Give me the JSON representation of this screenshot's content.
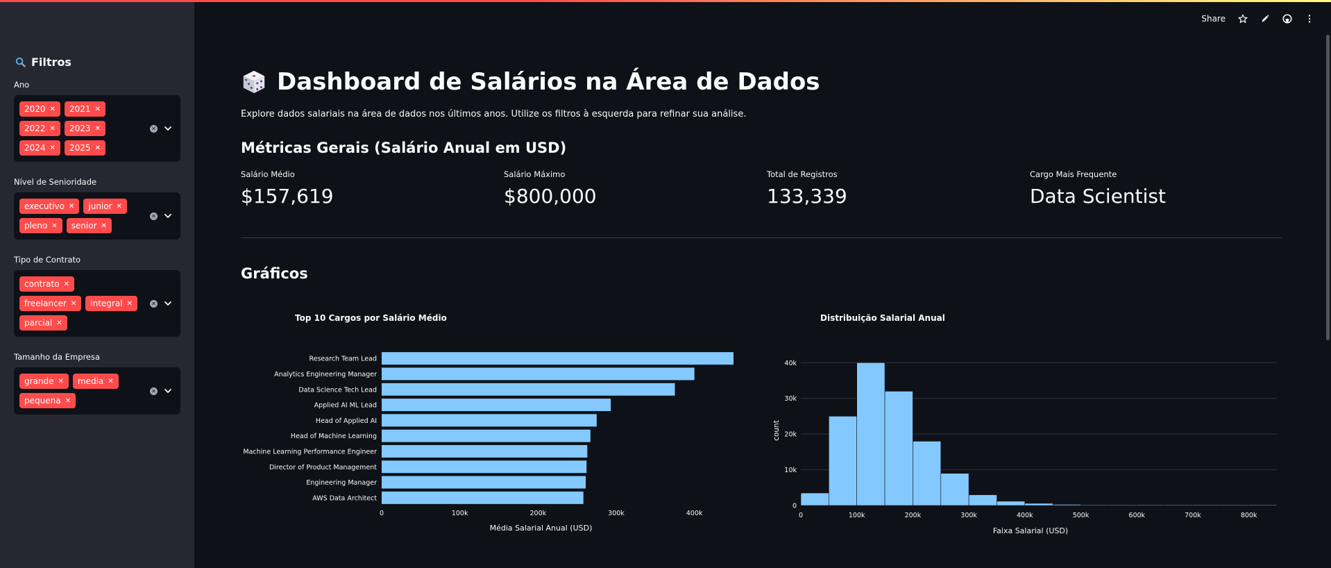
{
  "colors": {
    "accent": "#ff4b4b",
    "bar": "#83c9ff",
    "bg": "#0e1117",
    "sidebar": "#262730"
  },
  "sidebar": {
    "title": "Filtros",
    "title_icon": "search-icon",
    "filters": [
      {
        "label": "Ano",
        "chips": [
          "2020",
          "2021",
          "2022",
          "2023",
          "2024",
          "2025"
        ]
      },
      {
        "label": "Nível de Senioridade",
        "chips": [
          "executivo",
          "junior",
          "pleno",
          "senior"
        ]
      },
      {
        "label": "Tipo de Contrato",
        "chips": [
          "contrato",
          "freelancer",
          "integral",
          "parcial"
        ]
      },
      {
        "label": "Tamanho da Empresa",
        "chips": [
          "grande",
          "media",
          "pequena"
        ]
      }
    ]
  },
  "toolbar": {
    "share_label": "Share",
    "icons": [
      "star-icon",
      "pencil-icon",
      "github-icon",
      "more-vertical-icon"
    ]
  },
  "main": {
    "title": "Dashboard de Salários na Área de Dados",
    "subtitle": "Explore dados salariais na área de dados nos últimos anos. Utilize os filtros à esquerda para refinar sua análise.",
    "metrics_heading": "Métricas Gerais (Salário Anual em USD)",
    "metrics": [
      {
        "label": "Salário Médio",
        "value": "$157,619"
      },
      {
        "label": "Salário Máximo",
        "value": "$800,000"
      },
      {
        "label": "Total de Registros",
        "value": "133,339"
      },
      {
        "label": "Cargo Mais Frequente",
        "value": "Data Scientist"
      }
    ],
    "charts_heading": "Gráficos"
  },
  "chart_data": [
    {
      "type": "bar",
      "orientation": "horizontal",
      "title": "Top 10 Cargos por Salário Médio",
      "xlabel": "Média Salarial Anual (USD)",
      "ylabel": "",
      "xlim": [
        0,
        450000
      ],
      "xticks": [
        0,
        100000,
        200000,
        300000,
        400000
      ],
      "xtick_labels": [
        "0",
        "100k",
        "200k",
        "300k",
        "400k"
      ],
      "categories": [
        "Research Team Lead",
        "Analytics Engineering Manager",
        "Data Science Tech Lead",
        "Applied AI ML Lead",
        "Head of Applied AI",
        "Head of Machine Learning",
        "Machine Learning Performance Engineer",
        "Director of Product Management",
        "Engineering Manager",
        "AWS Data Architect"
      ],
      "values": [
        450000,
        400000,
        375000,
        293000,
        275000,
        267000,
        263000,
        262000,
        261000,
        258000
      ],
      "grid": false
    },
    {
      "type": "bar",
      "subtype": "histogram",
      "title": "Distribuição Salarial Anual",
      "xlabel": "Faixa Salarial (USD)",
      "ylabel": "count",
      "bin_width": 50000,
      "bin_starts": [
        0,
        50000,
        100000,
        150000,
        200000,
        250000,
        300000,
        350000,
        400000,
        450000,
        500000,
        550000,
        600000,
        650000,
        700000,
        750000,
        800000
      ],
      "values": [
        3500,
        25000,
        40000,
        32000,
        18000,
        9000,
        3000,
        1200,
        600,
        300,
        150,
        100,
        60,
        40,
        30,
        20,
        10
      ],
      "xlim": [
        0,
        850000
      ],
      "ylim": [
        0,
        42000
      ],
      "xticks": [
        0,
        100000,
        200000,
        300000,
        400000,
        500000,
        600000,
        700000,
        800000
      ],
      "xtick_labels": [
        "0",
        "100k",
        "200k",
        "300k",
        "400k",
        "500k",
        "600k",
        "700k",
        "800k"
      ],
      "yticks": [
        0,
        10000,
        20000,
        30000,
        40000
      ],
      "ytick_labels": [
        "0",
        "10k",
        "20k",
        "30k",
        "40k"
      ],
      "grid": true
    }
  ]
}
